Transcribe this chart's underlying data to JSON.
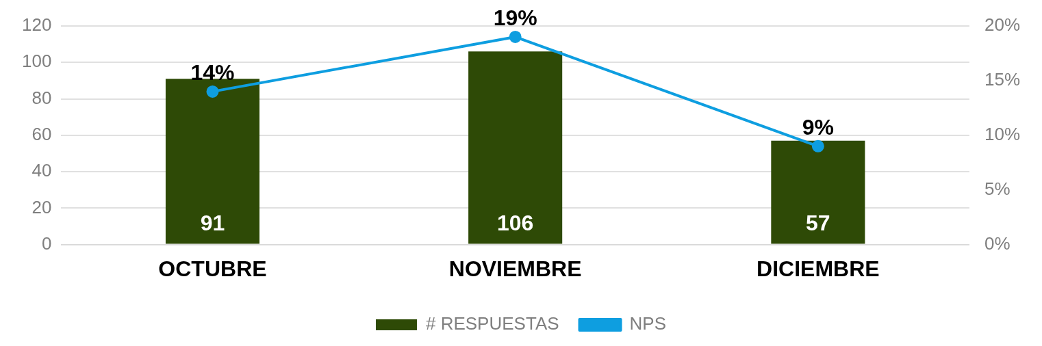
{
  "chart_data": {
    "type": "bar",
    "categories": [
      "OCTUBRE",
      "NOVIEMBRE",
      "DICIEMBRE"
    ],
    "series": [
      {
        "name": "# RESPUESTAS",
        "color": "#2e4a06",
        "values": [
          91,
          106,
          57
        ],
        "value_labels": [
          "91",
          "106",
          "57"
        ]
      },
      {
        "name": "NPS",
        "type": "line",
        "axis": "y2",
        "color": "#0e9ee0",
        "values": [
          14,
          19,
          9
        ],
        "value_labels": [
          "14%",
          "19%",
          "9%"
        ]
      }
    ],
    "ylim": [
      0,
      120
    ],
    "yticks": [
      0,
      20,
      40,
      60,
      80,
      100,
      120
    ],
    "y2lim": [
      0,
      20
    ],
    "y2ticks": [
      {
        "value": 0,
        "label": "0%"
      },
      {
        "value": 5,
        "label": "5%"
      },
      {
        "value": 10,
        "label": "10%"
      },
      {
        "value": 15,
        "label": "15%"
      },
      {
        "value": 20,
        "label": "20%"
      }
    ],
    "grid": "y",
    "legend": "bottom",
    "marker": "circle",
    "line_style": "solid"
  }
}
